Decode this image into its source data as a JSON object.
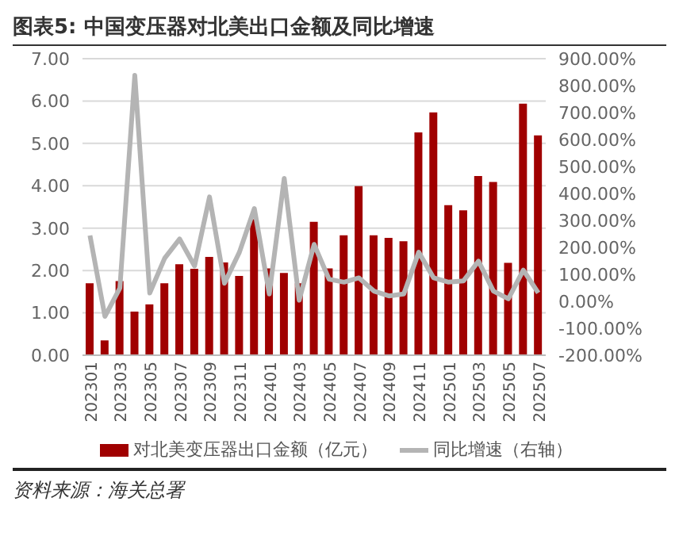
{
  "chart_data": {
    "type": "bar",
    "title": "图表5:  中国变压器对北美出口金额及同比增速",
    "categories": [
      "202301",
      null,
      "202303",
      null,
      "202305",
      null,
      "202307",
      null,
      "202309",
      null,
      "202311",
      null,
      "202401",
      null,
      "202403",
      null,
      "202405",
      null,
      "202407",
      null,
      "202409",
      null,
      "202411",
      null,
      "202501",
      null,
      "202503",
      null,
      "202505",
      null,
      "202507"
    ],
    "series": [
      {
        "name": "对北美变压器出口金额（亿元）",
        "color": "#a00000",
        "values": [
          1.7,
          0.35,
          1.75,
          1.03,
          1.2,
          1.7,
          2.15,
          2.04,
          2.32,
          2.19,
          1.87,
          3.21,
          2.05,
          1.94,
          1.7,
          3.15,
          2.05,
          2.83,
          3.99,
          2.83,
          2.77,
          2.69,
          5.26,
          5.73,
          3.54,
          3.42,
          4.23,
          4.09,
          2.18,
          5.94,
          5.19
        ]
      },
      {
        "name": "同比增速（右轴）",
        "type": "line",
        "axis": "y2",
        "color": "#b4b4b4",
        "values": [
          244,
          -56,
          49,
          838,
          31,
          160,
          231,
          131,
          387,
          67,
          182,
          344,
          27,
          456,
          4,
          211,
          82,
          71,
          87,
          38,
          20,
          27,
          182,
          87,
          71,
          76,
          149,
          38,
          9,
          116,
          31
        ]
      }
    ],
    "ylim": [
      0,
      7
    ],
    "yticks": [
      {
        "value": 0,
        "label": "0.00"
      },
      {
        "value": 1,
        "label": "1.00"
      },
      {
        "value": 2,
        "label": "2.00"
      },
      {
        "value": 3,
        "label": "3.00"
      },
      {
        "value": 4,
        "label": "4.00"
      },
      {
        "value": 5,
        "label": "5.00"
      },
      {
        "value": 6,
        "label": "6.00"
      },
      {
        "value": 7,
        "label": "7.00"
      }
    ],
    "y2lim": [
      -200,
      900
    ],
    "y2ticks": [
      {
        "value": -200,
        "label": "-200.00%"
      },
      {
        "value": -100,
        "label": "-100.00%"
      },
      {
        "value": 0,
        "label": "0.00%"
      },
      {
        "value": 100,
        "label": "100.00%"
      },
      {
        "value": 200,
        "label": "200.00%"
      },
      {
        "value": 300,
        "label": "300.00%"
      },
      {
        "value": 400,
        "label": "400.00%"
      },
      {
        "value": 500,
        "label": "500.00%"
      },
      {
        "value": 600,
        "label": "600.00%"
      },
      {
        "value": 700,
        "label": "700.00%"
      },
      {
        "value": 800,
        "label": "800.00%"
      },
      {
        "value": 900,
        "label": "900.00%"
      }
    ],
    "grid": "y",
    "legend": "bottom",
    "marker": "none",
    "annotations": [
      "资料来源：海关总署"
    ]
  }
}
